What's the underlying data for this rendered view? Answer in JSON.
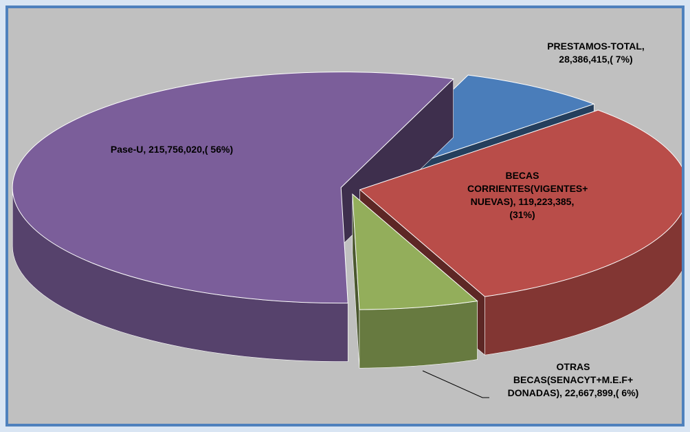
{
  "chart_data": {
    "type": "pie3d",
    "categories": [
      "PRESTAMOS-TOTAL",
      "BECAS CORRIENTES(VIGENTES+ NUEVAS)",
      "OTRAS BECAS(SENACYT+M.E.F+ DONADAS)",
      "Pase-U"
    ],
    "values": [
      28386415,
      119223385,
      22667899,
      215756020
    ],
    "value_labels": [
      "PRESTAMOS-TOTAL, 28,386,415,( 7%)",
      "BECAS CORRIENTES(VIGENTES+ NUEVAS), 119,223,385, (31%)",
      "OTRAS BECAS(SENACYT+M.E.F+ DONADAS), 22,667,899,( 6%)",
      "Pase-U, 215,756,020,( 56%)"
    ],
    "colors": [
      "#4a7dba",
      "#b94d49",
      "#93ae5b",
      "#7b5e9a"
    ]
  }
}
